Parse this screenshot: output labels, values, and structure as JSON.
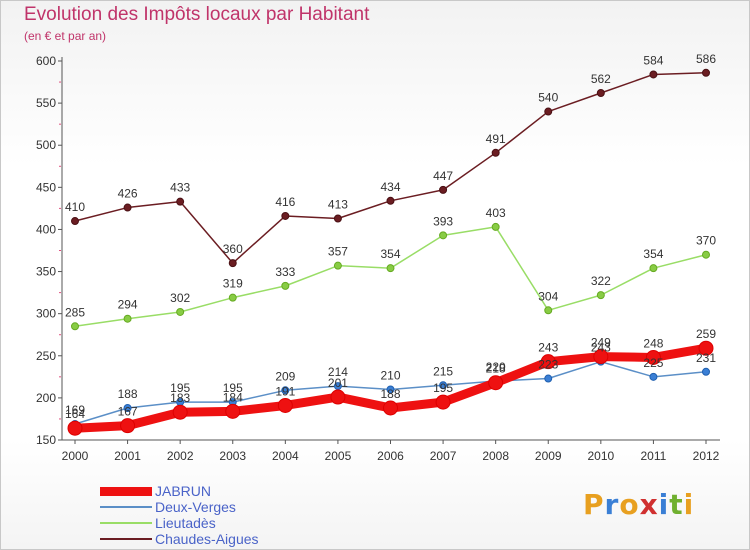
{
  "title": "Evolution des Impôts locaux par Habitant",
  "subtitle": "(en € et par an)",
  "logo": {
    "text": "Proxiti",
    "letters": [
      "P",
      "r",
      "o",
      "x",
      "i",
      "t",
      "i"
    ],
    "colors": [
      "#e8a020",
      "#3a7fd5",
      "#e8a020",
      "#d03030",
      "#3a7fd5",
      "#70b030",
      "#e8a020"
    ]
  },
  "chart_data": {
    "type": "line",
    "title": "Evolution des Impôts locaux par Habitant",
    "subtitle": "(en € et par an)",
    "xlabel": "",
    "ylabel": "",
    "x": [
      "2000",
      "2001",
      "2002",
      "2003",
      "2004",
      "2005",
      "2006",
      "2007",
      "2008",
      "2009",
      "2010",
      "2011",
      "2012"
    ],
    "ylim": [
      150,
      600
    ],
    "yticks": [
      "150",
      "200",
      "250",
      "300",
      "350",
      "400",
      "450",
      "500",
      "550",
      "600"
    ],
    "grid": false,
    "legend_position": "bottom-left",
    "series": [
      {
        "name": "JABRUN",
        "color": "#ee1111",
        "values": [
          164,
          167,
          183,
          184,
          191,
          201,
          188,
          195,
          218,
          243,
          249,
          248,
          259
        ],
        "labels": [
          "164",
          "167",
          "183",
          "184",
          "191",
          "201",
          "188",
          "195",
          "218",
          "243",
          "249",
          "248",
          "259"
        ]
      },
      {
        "name": "Deux-Verges",
        "color": "#5b8fc7",
        "values": [
          169,
          188,
          195,
          195,
          209,
          214,
          210,
          215,
          220,
          223,
          243,
          225,
          231
        ],
        "labels": [
          "169",
          "188",
          "195",
          "195",
          "209",
          "214",
          "210",
          "215",
          "220",
          "223",
          "243",
          "225",
          "231"
        ]
      },
      {
        "name": "Lieutadès",
        "color": "#99dd66",
        "values": [
          285,
          294,
          302,
          319,
          333,
          357,
          354,
          393,
          403,
          304,
          322,
          354,
          370
        ],
        "labels": [
          "285",
          "294",
          "302",
          "319",
          "333",
          "357",
          "354",
          "393",
          "403",
          "304",
          "322",
          "354",
          "370"
        ]
      },
      {
        "name": "Chaudes-Aigues",
        "color": "#6b1d22",
        "values": [
          410,
          426,
          433,
          360,
          416,
          413,
          434,
          447,
          491,
          540,
          562,
          584,
          586
        ],
        "labels": [
          "410",
          "426",
          "433",
          "360",
          "416",
          "413",
          "434",
          "447",
          "491",
          "540",
          "562",
          "584",
          "586"
        ]
      }
    ]
  }
}
